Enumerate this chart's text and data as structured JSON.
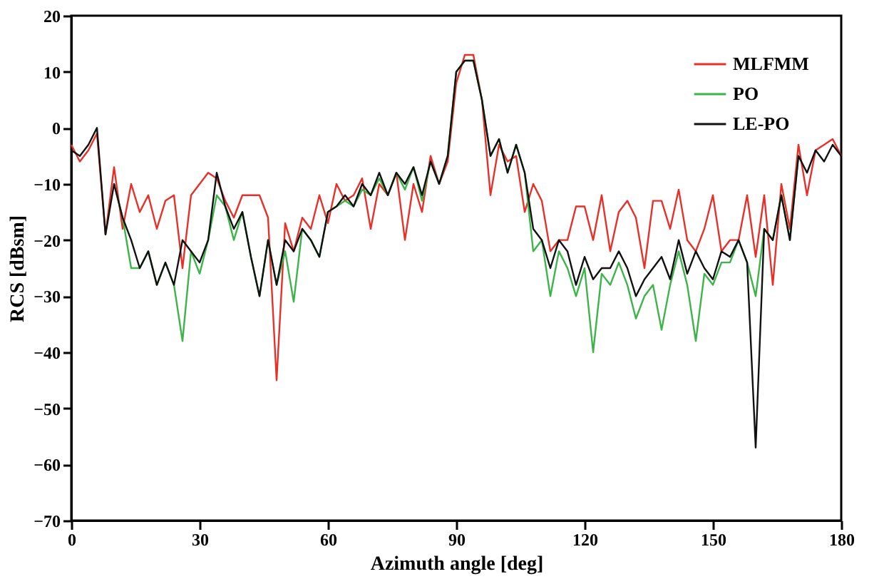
{
  "chart_data": {
    "type": "line",
    "xlabel": "Azimuth angle [deg]",
    "ylabel": "RCS [dBsm]",
    "x": [
      0,
      2,
      4,
      6,
      8,
      10,
      12,
      14,
      16,
      18,
      20,
      22,
      24,
      26,
      28,
      30,
      32,
      34,
      36,
      38,
      40,
      42,
      44,
      46,
      48,
      50,
      52,
      54,
      56,
      58,
      60,
      62,
      64,
      66,
      68,
      70,
      72,
      74,
      76,
      78,
      80,
      82,
      84,
      86,
      88,
      90,
      92,
      94,
      96,
      98,
      100,
      102,
      104,
      106,
      108,
      110,
      112,
      114,
      116,
      118,
      120,
      122,
      124,
      126,
      128,
      130,
      132,
      134,
      136,
      138,
      140,
      142,
      144,
      146,
      148,
      150,
      152,
      154,
      156,
      158,
      160,
      162,
      164,
      166,
      168,
      170,
      172,
      174,
      176,
      178,
      180
    ],
    "series": [
      {
        "name": "MLFMM",
        "color": "#e8302a",
        "values": [
          -3,
          -6,
          -4,
          -1,
          -19,
          -7,
          -18,
          -10,
          -15,
          -12,
          -18,
          -13,
          -12,
          -25,
          -12,
          -10,
          -8,
          -9,
          -13,
          -16,
          -12,
          -12,
          -12,
          -16,
          -45,
          -17,
          -22,
          -16,
          -18,
          -12,
          -17,
          -10,
          -13,
          -12,
          -9,
          -18,
          -10,
          -12,
          -8,
          -20,
          -10,
          -15,
          -5,
          -10,
          -6,
          8,
          13,
          13,
          5,
          -12,
          -3,
          -6,
          -5,
          -15,
          -10,
          -13,
          -22,
          -20,
          -20,
          -14,
          -14,
          -20,
          -12,
          -22,
          -15,
          -13,
          -16,
          -25,
          -13,
          -13,
          -18,
          -11,
          -20,
          -22,
          -18,
          -12,
          -22,
          -20,
          -20,
          -12,
          -23,
          -12,
          -28,
          -10,
          -18,
          -3,
          -12,
          -4,
          -3,
          -2,
          -5
        ]
      },
      {
        "name": "PO",
        "color": "#3cb44a",
        "values": [
          null,
          null,
          null,
          null,
          null,
          -10,
          -16,
          -25,
          -25,
          -22,
          -28,
          -24,
          -28,
          -38,
          -22,
          -26,
          -20,
          -12,
          -14,
          -20,
          -15,
          -23,
          -30,
          -20,
          -28,
          -22,
          -31,
          -18,
          -20,
          -23,
          -15,
          -14,
          -13,
          -14,
          -11,
          -12,
          -9,
          -12,
          -8,
          -11,
          -7,
          -13,
          -6,
          -10,
          -5,
          10,
          12,
          12,
          5,
          -5,
          -2,
          -8,
          -3,
          -8,
          -22,
          -20,
          -30,
          -22,
          -25,
          -30,
          -25,
          -40,
          -26,
          -28,
          -24,
          -28,
          -34,
          -30,
          -28,
          -36,
          -28,
          -22,
          -28,
          -38,
          -26,
          -28,
          -24,
          -24,
          -20,
          -24,
          -30,
          -18,
          -20,
          -12,
          -20,
          -5,
          null,
          null,
          null,
          null,
          null
        ]
      },
      {
        "name": "LE-PO",
        "color": "#111111",
        "values": [
          -4,
          -5,
          -3,
          0,
          -19,
          -10,
          -16,
          -20,
          -25,
          -22,
          -28,
          -24,
          -28,
          -20,
          -22,
          -24,
          -20,
          -8,
          -14,
          -18,
          -15,
          -23,
          -30,
          -20,
          -28,
          -20,
          -22,
          -18,
          -20,
          -23,
          -15,
          -14,
          -12,
          -14,
          -10,
          -12,
          -8,
          -12,
          -8,
          -10,
          -7,
          -12,
          -6,
          -10,
          -5,
          10,
          12,
          12,
          5,
          -5,
          -2,
          -8,
          -3,
          -8,
          -18,
          -20,
          -25,
          -20,
          -22,
          -28,
          -23,
          -27,
          -25,
          -25,
          -22,
          -25,
          -30,
          -27,
          -25,
          -23,
          -27,
          -20,
          -26,
          -22,
          -25,
          -27,
          -22,
          -23,
          -20,
          -24,
          -57,
          -18,
          -20,
          -12,
          -20,
          -5,
          -8,
          -4,
          -6,
          -3,
          -5
        ]
      }
    ],
    "xlim": [
      0,
      180
    ],
    "xticks": [
      0,
      30,
      60,
      90,
      120,
      150,
      180
    ],
    "ylim": [
      -70,
      20
    ],
    "yticks": [
      -70,
      -60,
      -50,
      -40,
      -30,
      -20,
      -10,
      0,
      10,
      20
    ],
    "legend": "top right",
    "grid": false,
    "marker": "none",
    "line_style": "solid"
  }
}
